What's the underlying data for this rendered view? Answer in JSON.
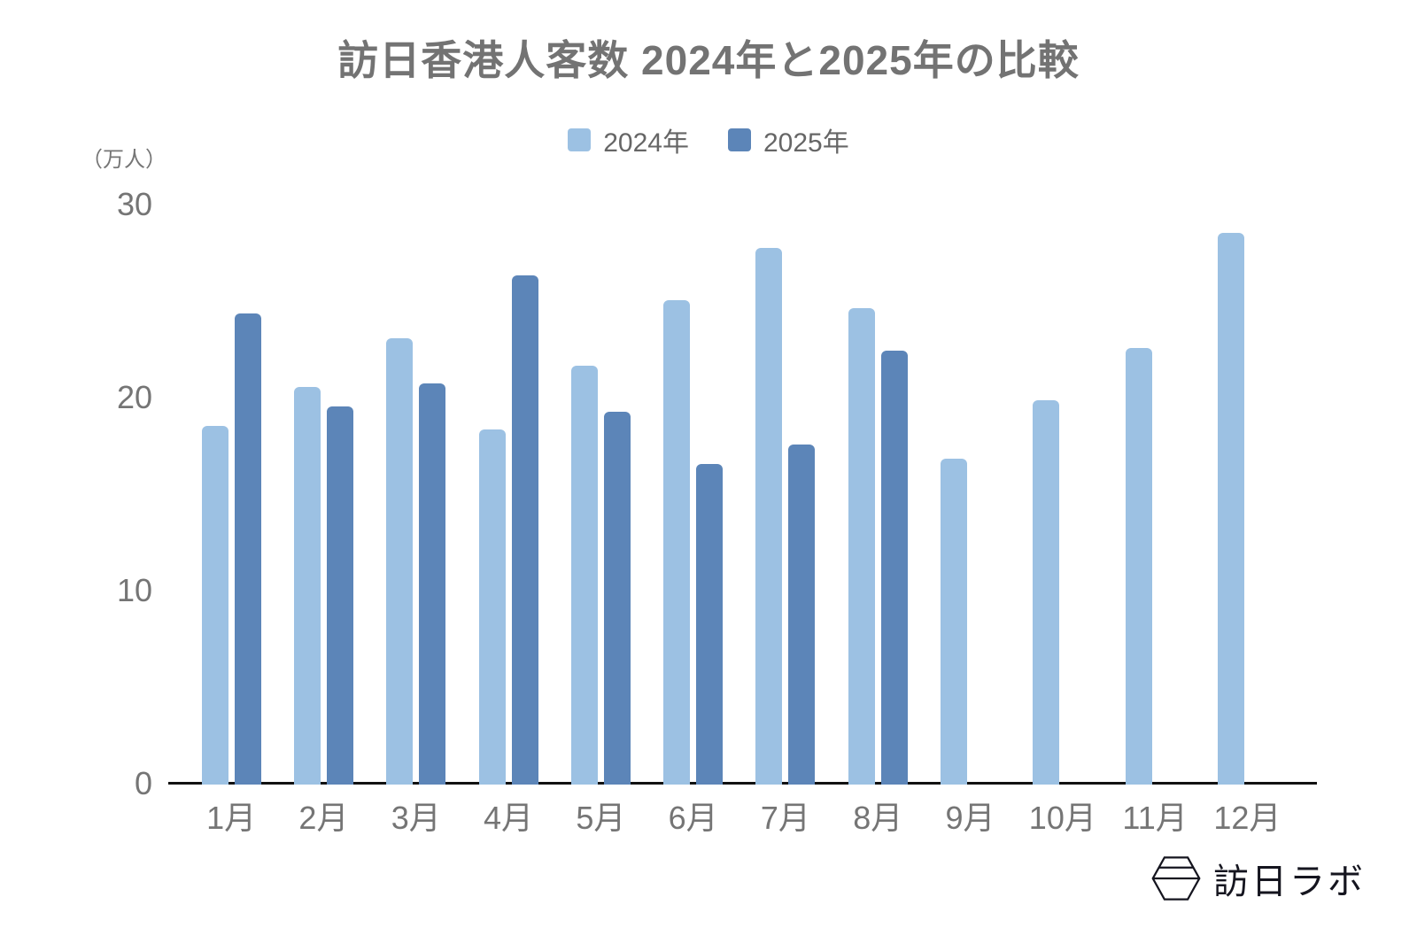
{
  "title": "訪日香港人客数 2024年と2025年の比較",
  "chart_data": {
    "type": "bar",
    "title": "訪日香港人客数 2024年と2025年の比較",
    "unit_label": "（万人）",
    "categories": [
      "1月",
      "2月",
      "3月",
      "4月",
      "5月",
      "6月",
      "7月",
      "8月",
      "9月",
      "10月",
      "11月",
      "12月"
    ],
    "series": [
      {
        "name": "2024年",
        "color": "#9CC1E3",
        "values": [
          18.6,
          20.6,
          23.1,
          18.4,
          21.7,
          25.1,
          27.8,
          24.7,
          16.9,
          19.9,
          22.6,
          28.6
        ]
      },
      {
        "name": "2025年",
        "color": "#5C85B8",
        "values": [
          24.4,
          19.6,
          20.8,
          26.4,
          19.3,
          16.6,
          17.6,
          22.5,
          null,
          null,
          null,
          null
        ]
      }
    ],
    "ylim": [
      0,
      30
    ],
    "y_ticks": [
      0,
      10,
      20,
      30
    ],
    "xlabel": "",
    "ylabel": "（万人）",
    "grid": false,
    "legend_position": "top"
  },
  "colors": {
    "series_2024": "#9CC1E3",
    "series_2025": "#5C85B8",
    "text_gray": "#757575",
    "axis_black": "#111111",
    "logo_dark": "#15151f"
  },
  "logo": {
    "text": "訪日ラボ",
    "icon": "hexagon-icon"
  }
}
